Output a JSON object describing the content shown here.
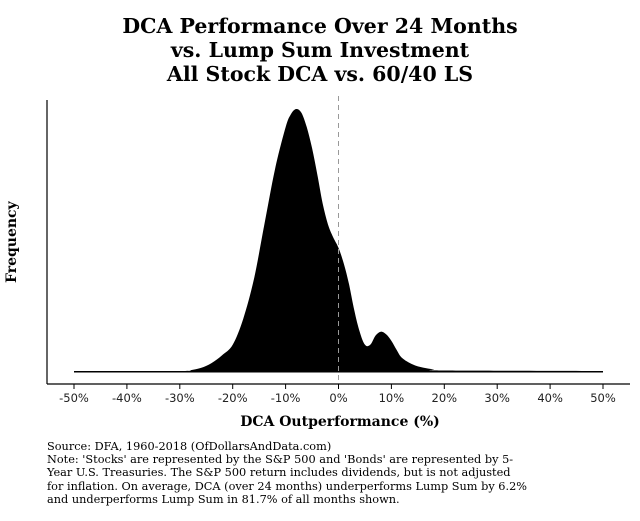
{
  "chart_data": {
    "type": "area",
    "title": [
      "DCA Performance Over 24 Months",
      "vs. Lump Sum Investment",
      "All Stock DCA vs. 60/40 LS"
    ],
    "xlabel": "DCA Outperformance (%)",
    "ylabel": "Frequency",
    "xlim": [
      -50,
      50
    ],
    "x_ticks": [
      "-50%",
      "-40%",
      "-30%",
      "-20%",
      "-10%",
      "0%",
      "10%",
      "20%",
      "30%",
      "40%",
      "50%"
    ],
    "x_tick_values": [
      -50,
      -40,
      -30,
      -20,
      -10,
      0,
      10,
      20,
      30,
      40,
      50
    ],
    "reference_line_x": 0,
    "grid": false,
    "fill_color": "#000000",
    "x": [
      -50,
      -30,
      -28,
      -26,
      -24,
      -22,
      -20,
      -18,
      -16,
      -14,
      -12,
      -10,
      -9,
      -8,
      -7,
      -6,
      -5,
      -4,
      -3,
      -2,
      -1,
      0,
      1,
      2,
      3,
      4,
      5,
      6,
      7,
      8,
      9,
      10,
      11,
      12,
      14,
      16,
      18,
      20,
      50
    ],
    "density": [
      0,
      0,
      0.003,
      0.012,
      0.03,
      0.06,
      0.1,
      0.2,
      0.35,
      0.56,
      0.77,
      0.93,
      0.98,
      1.0,
      0.985,
      0.93,
      0.85,
      0.75,
      0.64,
      0.56,
      0.51,
      0.47,
      0.41,
      0.33,
      0.23,
      0.15,
      0.1,
      0.1,
      0.135,
      0.15,
      0.14,
      0.115,
      0.08,
      0.05,
      0.025,
      0.013,
      0.006,
      0.002,
      0
    ]
  },
  "source": "Source:  DFA, 1960-2018 (OfDollarsAndData.com)",
  "note_lines": [
    "Note: 'Stocks' are represented by the S&P 500 and 'Bonds' are represented by 5-",
    "Year U.S. Treasuries. The S&P 500 return includes dividends, but is not adjusted",
    "for inflation. On average, DCA (over 24 months) underperforms Lump Sum by 6.2%",
    "and underperforms Lump Sum in 81.7% of all months shown."
  ]
}
